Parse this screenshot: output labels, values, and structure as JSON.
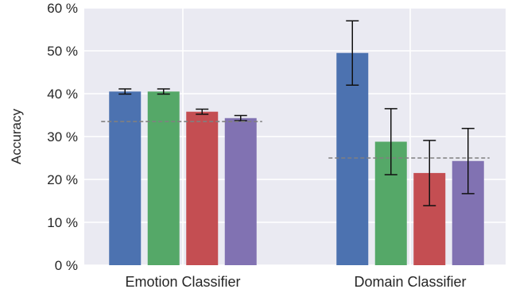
{
  "chart_data": {
    "type": "bar",
    "ylabel": "Accuracy",
    "ylim": [
      0,
      60
    ],
    "yticks": [
      0,
      10,
      20,
      30,
      40,
      50,
      60
    ],
    "ytick_suffix": " %",
    "grid": true,
    "background": "#eaeaf2",
    "categories": [
      "Emotion Classifier",
      "Domain Classifier"
    ],
    "series": [
      {
        "color": "#4c72b0",
        "values": [
          40.5,
          49.5
        ],
        "errors": [
          0.6,
          7.5
        ]
      },
      {
        "color": "#55a868",
        "values": [
          40.5,
          28.8
        ],
        "errors": [
          0.6,
          7.7
        ]
      },
      {
        "color": "#c44e52",
        "values": [
          35.8,
          21.5
        ],
        "errors": [
          0.6,
          7.6
        ]
      },
      {
        "color": "#8172b2",
        "values": [
          34.3,
          24.3
        ],
        "errors": [
          0.6,
          7.6
        ]
      }
    ],
    "baselines": [
      33.5,
      25.0
    ],
    "baseline_color": "#808080"
  }
}
